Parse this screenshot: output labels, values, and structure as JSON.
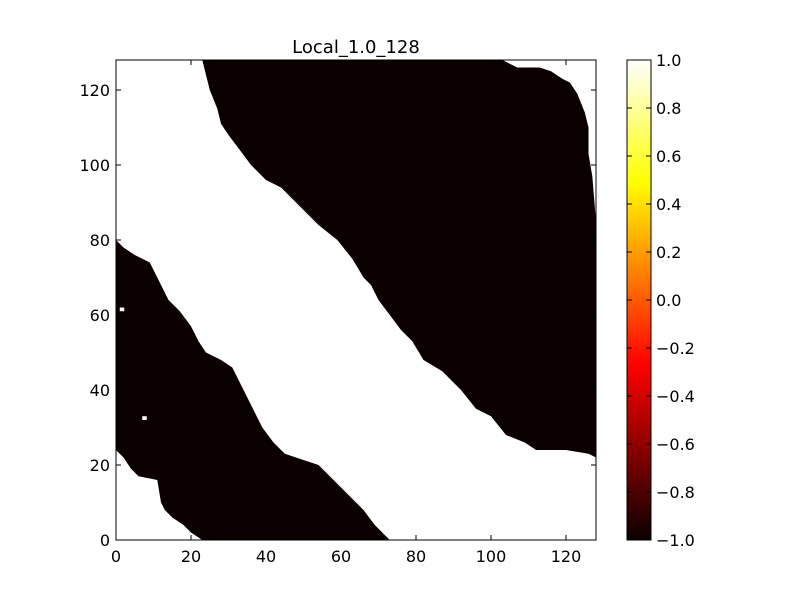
{
  "chart_data": {
    "type": "heatmap",
    "title": "Local_1.0_128",
    "xlim": [
      0,
      128
    ],
    "ylim": [
      0,
      128
    ],
    "x_ticks": [
      "0",
      "20",
      "40",
      "60",
      "80",
      "100",
      "120"
    ],
    "y_ticks": [
      "0",
      "20",
      "40",
      "60",
      "80",
      "100",
      "120"
    ],
    "x_tick_values": [
      0,
      20,
      40,
      60,
      80,
      100,
      120
    ],
    "y_tick_values": [
      0,
      20,
      40,
      60,
      80,
      100,
      120
    ],
    "grid": false,
    "colormap": "hot",
    "background_value": 1.0,
    "colorbar": {
      "range": [
        -1.0,
        1.0
      ],
      "ticks": [
        "1.0",
        "0.8",
        "0.6",
        "0.4",
        "0.2",
        "0.0",
        "−0.2",
        "−0.4",
        "−0.6",
        "−0.8",
        "−1.0"
      ],
      "tick_values": [
        1.0,
        0.8,
        0.6,
        0.4,
        0.2,
        0.0,
        -0.2,
        -0.4,
        -0.6,
        -0.8,
        -1.0
      ]
    },
    "regions": [
      {
        "name": "upper-right",
        "value": -1.0,
        "polygon": [
          [
            23,
            128
          ],
          [
            31,
            128
          ],
          [
            31,
            128
          ],
          [
            64,
            128
          ],
          [
            103,
            128
          ],
          [
            107,
            126
          ],
          [
            113,
            126
          ],
          [
            116,
            125
          ],
          [
            119,
            123
          ],
          [
            121,
            122
          ],
          [
            123,
            119
          ],
          [
            125,
            114
          ],
          [
            126,
            110
          ],
          [
            126,
            103
          ],
          [
            127,
            97
          ],
          [
            128,
            85
          ],
          [
            128,
            22
          ],
          [
            126,
            23
          ],
          [
            120,
            24
          ],
          [
            112,
            24
          ],
          [
            109,
            26
          ],
          [
            104,
            28
          ],
          [
            100,
            33
          ],
          [
            96,
            35
          ],
          [
            92,
            40
          ],
          [
            87,
            45
          ],
          [
            82,
            48
          ],
          [
            79,
            53
          ],
          [
            76,
            56
          ],
          [
            73,
            60
          ],
          [
            70,
            64
          ],
          [
            68,
            68
          ],
          [
            66,
            70
          ],
          [
            63,
            75
          ],
          [
            59,
            80
          ],
          [
            54,
            84
          ],
          [
            50,
            88
          ],
          [
            44,
            94
          ],
          [
            40,
            96
          ],
          [
            36,
            100
          ],
          [
            33,
            104
          ],
          [
            30,
            108
          ],
          [
            28,
            111
          ],
          [
            27,
            115
          ],
          [
            25,
            120
          ],
          [
            24,
            124
          ]
        ]
      },
      {
        "name": "lower-left",
        "value": -1.0,
        "polygon": [
          [
            0,
            80
          ],
          [
            2,
            78
          ],
          [
            5,
            76
          ],
          [
            9,
            74
          ],
          [
            12,
            68
          ],
          [
            14,
            64
          ],
          [
            17,
            61
          ],
          [
            20,
            57
          ],
          [
            22,
            53
          ],
          [
            24,
            50
          ],
          [
            28,
            48
          ],
          [
            31,
            46
          ],
          [
            33,
            42
          ],
          [
            35,
            38
          ],
          [
            37,
            34
          ],
          [
            39,
            30
          ],
          [
            42,
            26
          ],
          [
            45,
            23
          ],
          [
            48,
            22
          ],
          [
            54,
            20
          ],
          [
            58,
            16
          ],
          [
            62,
            12
          ],
          [
            66,
            8
          ],
          [
            69,
            4
          ],
          [
            72,
            1
          ],
          [
            73,
            0
          ],
          [
            23,
            0
          ],
          [
            20,
            2
          ],
          [
            18,
            4
          ],
          [
            15,
            6
          ],
          [
            13,
            8
          ],
          [
            12,
            10
          ],
          [
            11,
            16
          ],
          [
            6,
            17
          ],
          [
            4,
            19
          ],
          [
            2,
            22
          ],
          [
            0,
            24
          ]
        ]
      }
    ],
    "specks": [
      {
        "x": 1,
        "y": 61,
        "value": 1.0
      },
      {
        "x": 7,
        "y": 32,
        "value": 1.0
      }
    ]
  }
}
